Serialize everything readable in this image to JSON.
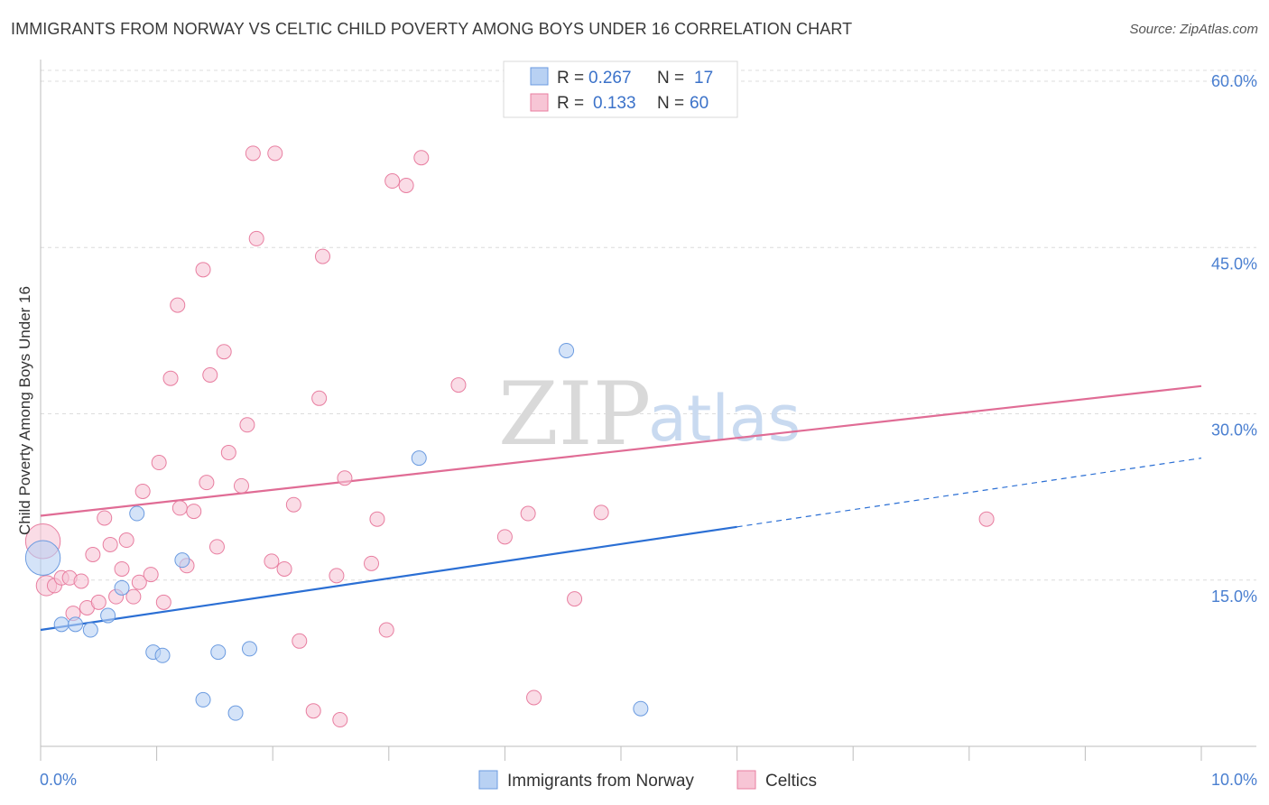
{
  "chart_data": {
    "type": "scatter",
    "title": "IMMIGRANTS FROM NORWAY VS CELTIC CHILD POVERTY AMONG BOYS UNDER 16 CORRELATION CHART",
    "source": "Source: ZipAtlas.com",
    "ylabel": "Child Poverty Among Boys Under 16",
    "xlim": [
      0,
      10
    ],
    "ylim": [
      0,
      60
    ],
    "x_tick_labels": [
      "0.0%",
      "10.0%"
    ],
    "y_ticks": [
      15,
      30,
      45,
      60
    ],
    "y_tick_labels": [
      "15.0%",
      "30.0%",
      "45.0%",
      "60.0%"
    ],
    "watermark": {
      "zip": "ZIP",
      "atlas": "atlas"
    },
    "legend": {
      "r_label": "R =",
      "n_label": "N =",
      "entries": [
        {
          "name": "Immigrants from Norway",
          "r": "0.267",
          "n": "17",
          "color": "#6b9be0",
          "fill": "#b8d1f3"
        },
        {
          "name": "Celtics",
          "r": "0.133",
          "n": "60",
          "color": "#e87ea0",
          "fill": "#f7c5d5"
        }
      ]
    },
    "series": [
      {
        "name": "Immigrants from Norway",
        "color": "#6b9be0",
        "trend": {
          "x0": 0,
          "y0": 10.5,
          "x1": 6,
          "y1": 19.8,
          "dash_to": 10,
          "dash_y": 26.0,
          "color": "#2b6fd4"
        },
        "points": [
          [
            0.02,
            17.0,
            2.4
          ],
          [
            0.18,
            11.0,
            1
          ],
          [
            0.3,
            11.0,
            1
          ],
          [
            0.43,
            10.5,
            1
          ],
          [
            0.58,
            11.8,
            1
          ],
          [
            0.7,
            14.3,
            1
          ],
          [
            0.83,
            21.0,
            1
          ],
          [
            0.97,
            8.5,
            1
          ],
          [
            1.05,
            8.2,
            1
          ],
          [
            1.22,
            16.8,
            1
          ],
          [
            1.4,
            4.2,
            1
          ],
          [
            1.53,
            8.5,
            1
          ],
          [
            1.68,
            3.0,
            1
          ],
          [
            1.8,
            8.8,
            1
          ],
          [
            3.26,
            26.0,
            1
          ],
          [
            4.53,
            35.7,
            1
          ],
          [
            5.17,
            3.4,
            1
          ]
        ]
      },
      {
        "name": "Celtics",
        "color": "#e87ea0",
        "trend": {
          "x0": 0,
          "y0": 20.8,
          "x1": 10,
          "y1": 32.5,
          "color": "#e06c95"
        },
        "points": [
          [
            0.02,
            18.5,
            2.4
          ],
          [
            0.05,
            14.5,
            1.4
          ],
          [
            0.12,
            14.5,
            1
          ],
          [
            0.18,
            15.2,
            1
          ],
          [
            0.25,
            15.2,
            1
          ],
          [
            0.28,
            12.0,
            1
          ],
          [
            0.35,
            14.9,
            1
          ],
          [
            0.4,
            12.5,
            1
          ],
          [
            0.45,
            17.3,
            1
          ],
          [
            0.5,
            13.0,
            1
          ],
          [
            0.55,
            20.6,
            1
          ],
          [
            0.6,
            18.2,
            1
          ],
          [
            0.65,
            13.5,
            1
          ],
          [
            0.7,
            16.0,
            1
          ],
          [
            0.74,
            18.6,
            1
          ],
          [
            0.8,
            13.5,
            1
          ],
          [
            0.85,
            14.8,
            1
          ],
          [
            0.88,
            23.0,
            1
          ],
          [
            0.95,
            15.5,
            1
          ],
          [
            1.02,
            25.6,
            1
          ],
          [
            1.06,
            13.0,
            1
          ],
          [
            1.12,
            33.2,
            1
          ],
          [
            1.18,
            39.8,
            1
          ],
          [
            1.2,
            21.5,
            1
          ],
          [
            1.26,
            16.3,
            1
          ],
          [
            1.32,
            21.2,
            1
          ],
          [
            1.4,
            43.0,
            1
          ],
          [
            1.43,
            23.8,
            1
          ],
          [
            1.46,
            33.5,
            1
          ],
          [
            1.52,
            18.0,
            1
          ],
          [
            1.58,
            35.6,
            1
          ],
          [
            1.62,
            26.5,
            1
          ],
          [
            1.73,
            23.5,
            1
          ],
          [
            1.78,
            29.0,
            1
          ],
          [
            1.83,
            53.5,
            1
          ],
          [
            1.86,
            45.8,
            1
          ],
          [
            1.99,
            16.7,
            1
          ],
          [
            2.02,
            53.5,
            1
          ],
          [
            2.1,
            16.0,
            1
          ],
          [
            2.18,
            21.8,
            1
          ],
          [
            2.23,
            9.5,
            1
          ],
          [
            2.35,
            3.2,
            1
          ],
          [
            2.4,
            31.4,
            1
          ],
          [
            2.43,
            44.2,
            1
          ],
          [
            2.55,
            15.4,
            1
          ],
          [
            2.58,
            2.4,
            1
          ],
          [
            2.62,
            24.2,
            1
          ],
          [
            2.85,
            16.5,
            1
          ],
          [
            2.9,
            20.5,
            1
          ],
          [
            2.98,
            10.5,
            1
          ],
          [
            3.03,
            51.0,
            1
          ],
          [
            3.15,
            50.6,
            1
          ],
          [
            3.28,
            53.1,
            1
          ],
          [
            3.6,
            32.6,
            1
          ],
          [
            4.0,
            18.9,
            1
          ],
          [
            4.2,
            21.0,
            1
          ],
          [
            4.25,
            4.4,
            1
          ],
          [
            4.6,
            13.3,
            1
          ],
          [
            4.83,
            21.1,
            1
          ],
          [
            8.15,
            20.5,
            1
          ]
        ]
      }
    ]
  }
}
